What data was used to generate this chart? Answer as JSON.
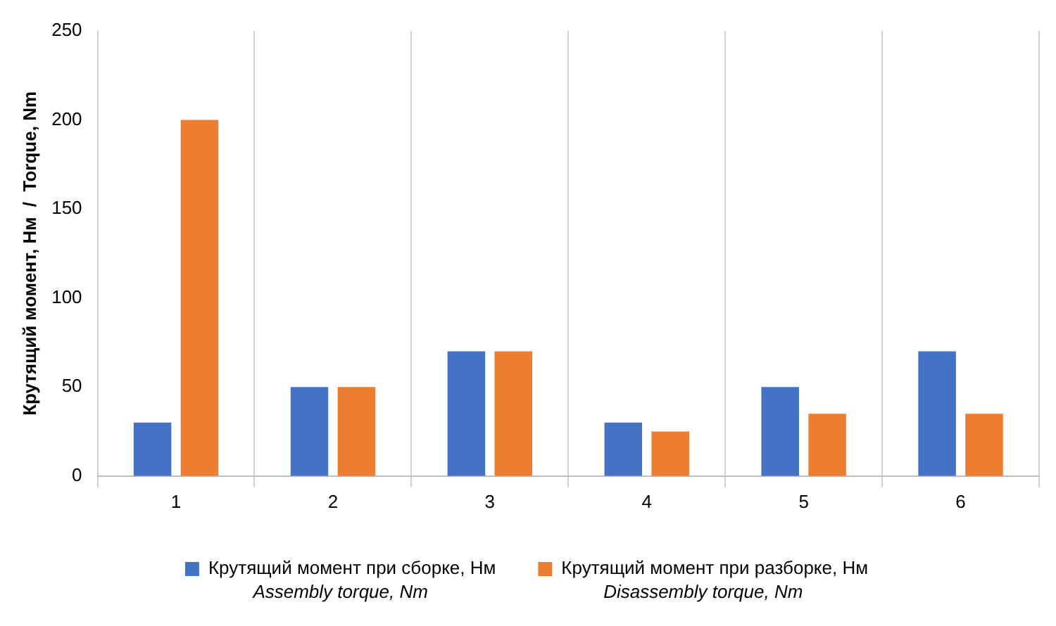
{
  "chart_data": {
    "type": "bar",
    "ylabel": "Крутящий момент, Нм  /  Torque, Nm",
    "categories": [
      "1",
      "2",
      "3",
      "4",
      "5",
      "6"
    ],
    "series": [
      {
        "name": "Крутящий момент при сборке, Нм",
        "color": "#4472c4",
        "values": [
          30,
          50,
          70,
          30,
          50,
          70
        ]
      },
      {
        "name": "Крутящий момент при разборке, Нм",
        "color": "#ed7d31",
        "values": [
          200,
          50,
          70,
          25,
          35,
          35
        ]
      }
    ],
    "ylim": [
      0,
      250
    ],
    "yticks": [
      0,
      50,
      100,
      150,
      200,
      250
    ],
    "grid": "x",
    "legend": "bottom",
    "annotations": [
      "Assembly torque, Nm",
      "Disassembly torque, Nm"
    ]
  }
}
